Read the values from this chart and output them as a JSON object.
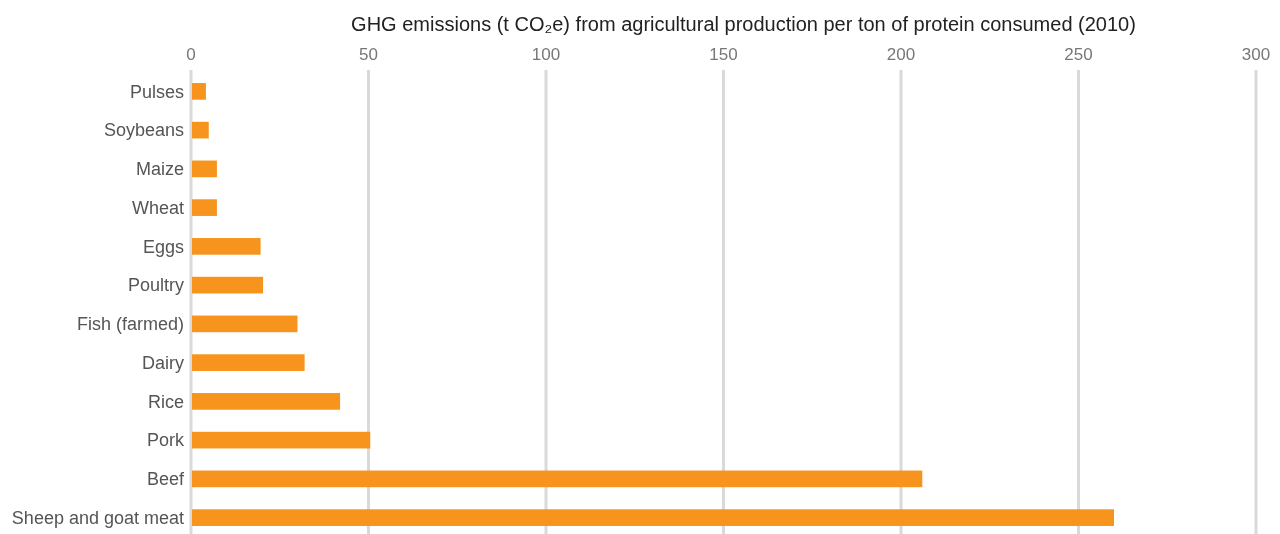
{
  "chart_data": {
    "type": "bar",
    "orientation": "horizontal",
    "title": "GHG emissions (t CO₂e) from agricultural production per ton of protein consumed (2010)",
    "categories": [
      "Pulses",
      "Soybeans",
      "Maize",
      "Wheat",
      "Eggs",
      "Poultry",
      "Fish (farmed)",
      "Dairy",
      "Rice",
      "Pork",
      "Beef",
      "Sheep and goat meat"
    ],
    "values": [
      4.2,
      5,
      7.3,
      7.3,
      19.6,
      20.3,
      30,
      32,
      42,
      50.5,
      206,
      260
    ],
    "color": "#f7941d",
    "xlim": [
      0,
      300
    ],
    "xticks": [
      0,
      50,
      100,
      150,
      200,
      250,
      300
    ],
    "grid": "x"
  }
}
